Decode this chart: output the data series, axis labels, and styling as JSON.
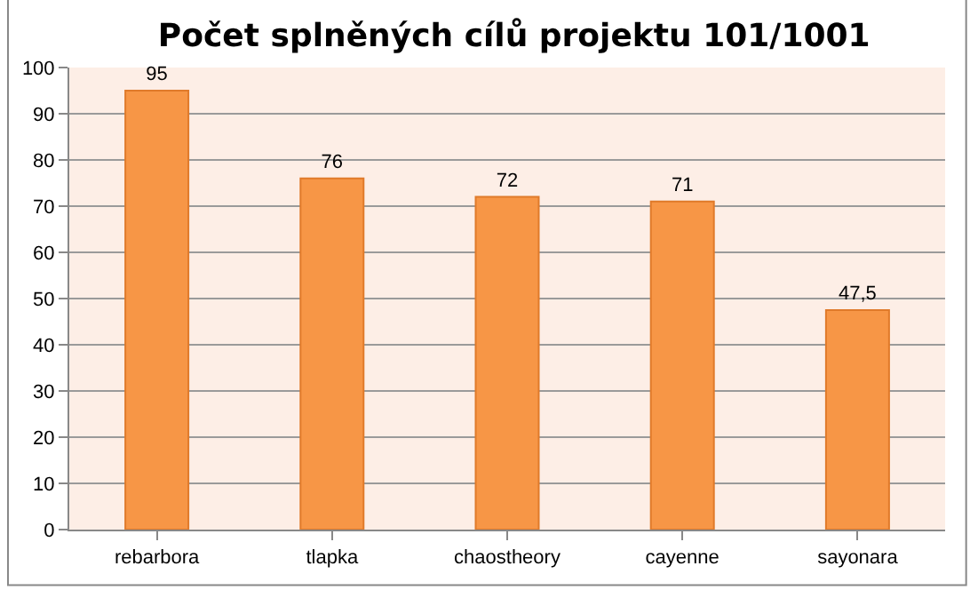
{
  "chart_data": {
    "type": "bar",
    "title": "Počet splněných cílů projektu 101/1001",
    "categories": [
      "rebarbora",
      "tlapka",
      "chaostheory",
      "cayenne",
      "sayonara"
    ],
    "values": [
      95,
      76,
      72,
      71,
      47.5
    ],
    "value_labels": [
      "95",
      "76",
      "72",
      "71",
      "47,5"
    ],
    "color": "#f79646",
    "ylim": [
      0,
      100
    ],
    "yticks": [
      0,
      10,
      20,
      30,
      40,
      50,
      60,
      70,
      80,
      90,
      100
    ],
    "grid": "y"
  }
}
